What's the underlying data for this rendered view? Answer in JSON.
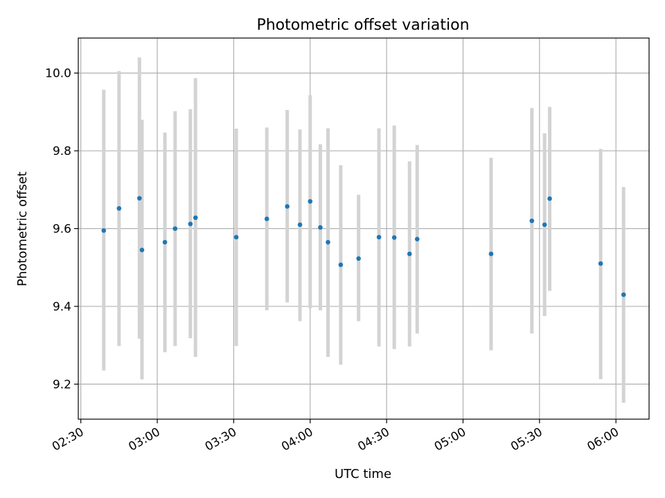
{
  "chart_data": {
    "type": "scatter",
    "title": "Photometric offset variation",
    "xlabel": "UTC time",
    "ylabel": "Photometric offset",
    "x_axis_type": "time",
    "xlim": [
      "02:29",
      "06:13"
    ],
    "ylim": [
      9.11,
      10.09
    ],
    "x_ticks": [
      "02:30",
      "03:00",
      "03:30",
      "04:00",
      "04:30",
      "05:00",
      "05:30",
      "06:00"
    ],
    "y_ticks": [
      9.2,
      9.4,
      9.6,
      9.8,
      10.0
    ],
    "y_tick_labels": [
      "9.2",
      "9.4",
      "9.6",
      "9.8",
      "10.0"
    ],
    "grid": true,
    "marker_color": "#1f77b4",
    "errorbar_color": "#d3d3d3",
    "points": [
      {
        "time": "02:39",
        "y": 9.595,
        "err_low": 9.235,
        "err_high": 9.957
      },
      {
        "time": "02:45",
        "y": 9.652,
        "err_low": 9.298,
        "err_high": 10.005
      },
      {
        "time": "02:53",
        "y": 9.678,
        "err_low": 9.317,
        "err_high": 10.04
      },
      {
        "time": "02:54",
        "y": 9.545,
        "err_low": 9.212,
        "err_high": 9.88
      },
      {
        "time": "03:03",
        "y": 9.565,
        "err_low": 9.282,
        "err_high": 9.847
      },
      {
        "time": "03:07",
        "y": 9.6,
        "err_low": 9.298,
        "err_high": 9.902
      },
      {
        "time": "03:13",
        "y": 9.612,
        "err_low": 9.318,
        "err_high": 9.907
      },
      {
        "time": "03:15",
        "y": 9.628,
        "err_low": 9.27,
        "err_high": 9.987
      },
      {
        "time": "03:31",
        "y": 9.578,
        "err_low": 9.298,
        "err_high": 9.857
      },
      {
        "time": "03:43",
        "y": 9.625,
        "err_low": 9.39,
        "err_high": 9.86
      },
      {
        "time": "03:51",
        "y": 9.657,
        "err_low": 9.41,
        "err_high": 9.905
      },
      {
        "time": "03:56",
        "y": 9.61,
        "err_low": 9.362,
        "err_high": 9.855
      },
      {
        "time": "04:00",
        "y": 9.67,
        "err_low": 9.395,
        "err_high": 9.943
      },
      {
        "time": "04:04",
        "y": 9.603,
        "err_low": 9.39,
        "err_high": 9.817
      },
      {
        "time": "04:07",
        "y": 9.565,
        "err_low": 9.27,
        "err_high": 9.858
      },
      {
        "time": "04:12",
        "y": 9.507,
        "err_low": 9.25,
        "err_high": 9.763
      },
      {
        "time": "04:19",
        "y": 9.523,
        "err_low": 9.362,
        "err_high": 9.687
      },
      {
        "time": "04:27",
        "y": 9.578,
        "err_low": 9.297,
        "err_high": 9.858
      },
      {
        "time": "04:33",
        "y": 9.577,
        "err_low": 9.29,
        "err_high": 9.865
      },
      {
        "time": "04:39",
        "y": 9.535,
        "err_low": 9.297,
        "err_high": 9.773
      },
      {
        "time": "04:42",
        "y": 9.573,
        "err_low": 9.33,
        "err_high": 9.815
      },
      {
        "time": "05:11",
        "y": 9.535,
        "err_low": 9.287,
        "err_high": 9.782
      },
      {
        "time": "05:27",
        "y": 9.62,
        "err_low": 9.33,
        "err_high": 9.91
      },
      {
        "time": "05:32",
        "y": 9.61,
        "err_low": 9.375,
        "err_high": 9.845
      },
      {
        "time": "05:34",
        "y": 9.677,
        "err_low": 9.44,
        "err_high": 9.913
      },
      {
        "time": "05:54",
        "y": 9.51,
        "err_low": 9.213,
        "err_high": 9.805
      },
      {
        "time": "06:03",
        "y": 9.43,
        "err_low": 9.152,
        "err_high": 9.707
      }
    ]
  }
}
